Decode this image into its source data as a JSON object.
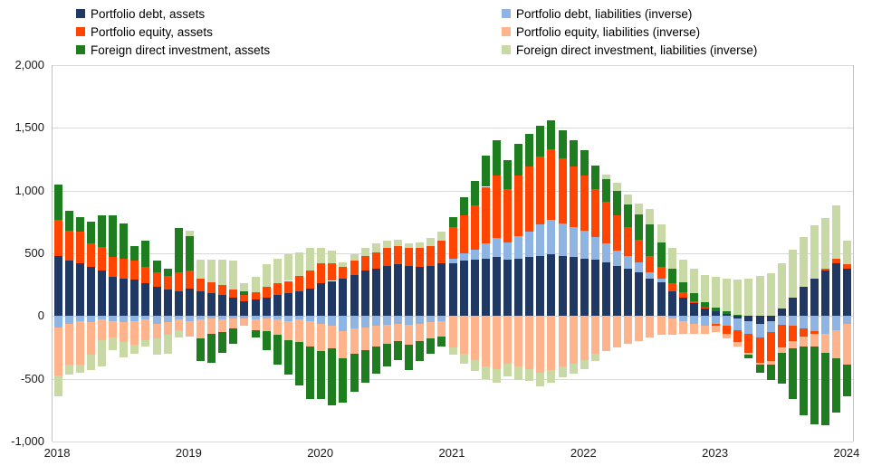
{
  "chart_data": {
    "type": "bar",
    "stacked": true,
    "grid": true,
    "legend_position": "top",
    "ylim": [
      -1000,
      2000
    ],
    "yticks": [
      -1000,
      -500,
      0,
      500,
      1000,
      1500,
      2000
    ],
    "xticks": [
      {
        "label": "2018",
        "month": 0
      },
      {
        "label": "2019",
        "month": 12
      },
      {
        "label": "2020",
        "month": 24
      },
      {
        "label": "2021",
        "month": 36
      },
      {
        "label": "2022",
        "month": 48
      },
      {
        "label": "2023",
        "month": 60
      },
      {
        "label": "2024",
        "month": 72
      }
    ],
    "months": [
      "2018-01",
      "2018-02",
      "2018-03",
      "2018-04",
      "2018-05",
      "2018-06",
      "2018-07",
      "2018-08",
      "2018-09",
      "2018-10",
      "2018-11",
      "2018-12",
      "2019-01",
      "2019-02",
      "2019-03",
      "2019-04",
      "2019-05",
      "2019-06",
      "2019-07",
      "2019-08",
      "2019-09",
      "2019-10",
      "2019-11",
      "2019-12",
      "2020-01",
      "2020-02",
      "2020-03",
      "2020-04",
      "2020-05",
      "2020-06",
      "2020-07",
      "2020-08",
      "2020-09",
      "2020-10",
      "2020-11",
      "2020-12",
      "2021-01",
      "2021-02",
      "2021-03",
      "2021-04",
      "2021-05",
      "2021-06",
      "2021-07",
      "2021-08",
      "2021-09",
      "2021-10",
      "2021-11",
      "2021-12",
      "2022-01",
      "2022-02",
      "2022-03",
      "2022-04",
      "2022-05",
      "2022-06",
      "2022-07",
      "2022-08",
      "2022-09",
      "2022-10",
      "2022-11",
      "2022-12",
      "2023-01",
      "2023-02",
      "2023-03",
      "2023-04",
      "2023-05",
      "2023-06",
      "2023-07",
      "2023-08",
      "2023-09",
      "2023-10",
      "2023-11",
      "2023-12",
      "2024-01"
    ],
    "series": [
      {
        "name": "Portfolio debt, assets",
        "color": "#1F3864",
        "values": [
          480,
          440,
          420,
          390,
          360,
          310,
          300,
          290,
          260,
          230,
          210,
          200,
          220,
          200,
          180,
          170,
          150,
          120,
          130,
          150,
          170,
          180,
          200,
          220,
          260,
          280,
          300,
          330,
          360,
          380,
          400,
          410,
          400,
          390,
          400,
          420,
          420,
          440,
          450,
          460,
          470,
          450,
          460,
          470,
          480,
          490,
          480,
          470,
          460,
          450,
          430,
          400,
          380,
          350,
          300,
          270,
          200,
          150,
          100,
          60,
          40,
          20,
          -20,
          -40,
          -60,
          -40,
          60,
          150,
          230,
          300,
          360,
          420,
          380
        ]
      },
      {
        "name": "Portfolio debt, liabilities (inverse)",
        "color": "#8EB4E3",
        "values": [
          -90,
          -60,
          -40,
          -50,
          -30,
          -40,
          -50,
          -40,
          -30,
          -60,
          -50,
          -30,
          -40,
          -30,
          -20,
          -30,
          -20,
          -20,
          -30,
          -20,
          -30,
          -40,
          -30,
          -40,
          -60,
          -80,
          -120,
          -100,
          -90,
          -80,
          -70,
          -60,
          -70,
          -60,
          -50,
          -40,
          40,
          60,
          80,
          120,
          150,
          140,
          180,
          200,
          250,
          280,
          260,
          240,
          220,
          180,
          150,
          120,
          100,
          80,
          50,
          30,
          -20,
          -40,
          -60,
          -80,
          -60,
          -80,
          -90,
          -100,
          -110,
          -90,
          -70,
          -80,
          -100,
          -120,
          -140,
          -110,
          -60
        ]
      },
      {
        "name": "Portfolio equity, assets",
        "color": "#FF4500",
        "values": [
          290,
          240,
          250,
          190,
          190,
          160,
          160,
          150,
          130,
          120,
          110,
          150,
          140,
          100,
          90,
          80,
          60,
          50,
          60,
          80,
          90,
          100,
          120,
          140,
          160,
          140,
          90,
          110,
          120,
          130,
          140,
          150,
          140,
          150,
          160,
          180,
          250,
          300,
          350,
          450,
          500,
          420,
          480,
          520,
          540,
          560,
          520,
          480,
          440,
          380,
          330,
          280,
          230,
          180,
          130,
          90,
          60,
          40,
          20,
          10,
          -20,
          -60,
          -100,
          -150,
          -200,
          -230,
          -180,
          -120,
          -60,
          -20,
          20,
          40,
          30
        ]
      },
      {
        "name": "Portfolio equity, liabilities (inverse)",
        "color": "#FFB38A",
        "values": [
          -380,
          -330,
          -350,
          -260,
          -160,
          -130,
          -160,
          -190,
          -160,
          -120,
          -100,
          -80,
          -120,
          -150,
          -120,
          -100,
          -80,
          -60,
          -80,
          -100,
          -120,
          -150,
          -180,
          -200,
          -220,
          -180,
          -220,
          -200,
          -180,
          -160,
          -150,
          -140,
          -160,
          -140,
          -130,
          -120,
          -250,
          -300,
          -350,
          -400,
          -420,
          -380,
          -400,
          -420,
          -450,
          -430,
          -400,
          -380,
          -350,
          -300,
          -280,
          -250,
          -220,
          -200,
          -170,
          -150,
          -130,
          -100,
          -80,
          -60,
          -50,
          -40,
          -30,
          -20,
          -20,
          -30,
          -40,
          -60,
          -80,
          -100,
          -150,
          -230,
          -330
        ]
      },
      {
        "name": "Foreign direct investment, assets",
        "color": "#1E7D1E",
        "values": [
          280,
          160,
          120,
          170,
          250,
          330,
          280,
          120,
          210,
          90,
          60,
          350,
          280,
          -180,
          -230,
          -160,
          -120,
          30,
          -60,
          -150,
          -240,
          -280,
          -340,
          -420,
          -380,
          -450,
          -350,
          -300,
          -260,
          -220,
          -180,
          -150,
          -200,
          -160,
          -120,
          -80,
          80,
          150,
          200,
          250,
          280,
          230,
          250,
          260,
          250,
          230,
          220,
          210,
          200,
          190,
          180,
          200,
          180,
          200,
          250,
          200,
          120,
          80,
          60,
          40,
          30,
          20,
          10,
          -30,
          -60,
          -120,
          -250,
          -400,
          -550,
          -620,
          -580,
          -430,
          -250
        ]
      },
      {
        "name": "Foreign direct investment, liabilities (inverse)",
        "color": "#C8D9A5",
        "values": [
          -170,
          -80,
          -60,
          -120,
          -210,
          -100,
          -120,
          -70,
          -50,
          -130,
          -150,
          -60,
          40,
          150,
          180,
          200,
          230,
          60,
          120,
          180,
          200,
          210,
          190,
          180,
          120,
          100,
          40,
          50,
          60,
          70,
          60,
          50,
          40,
          50,
          60,
          70,
          -60,
          -80,
          -90,
          -100,
          -110,
          -100,
          -110,
          -100,
          -110,
          -100,
          -90,
          -80,
          -70,
          -60,
          40,
          60,
          80,
          90,
          120,
          140,
          160,
          180,
          200,
          220,
          240,
          260,
          280,
          300,
          320,
          340,
          360,
          380,
          400,
          420,
          400,
          420,
          190
        ]
      }
    ]
  }
}
